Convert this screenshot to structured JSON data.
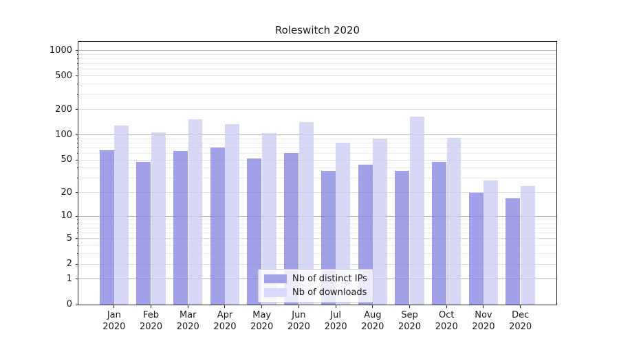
{
  "title": "Roleswitch 2020",
  "chart_data": {
    "type": "bar",
    "title": "Roleswitch 2020",
    "x_categories_line1": [
      "Jan",
      "Feb",
      "Mar",
      "Apr",
      "May",
      "Jun",
      "Jul",
      "Aug",
      "Sep",
      "Oct",
      "Nov",
      "Dec"
    ],
    "x_categories_line2": "2020",
    "series": [
      {
        "name": "Nb of distinct IPs",
        "color": "#a2a2e9",
        "bar_fill": "rgba(134,134,228,0.78)",
        "values": [
          66,
          47,
          64,
          71,
          52,
          61,
          37,
          44,
          37,
          47,
          20,
          17
        ]
      },
      {
        "name": "Nb of downloads",
        "color": "#d8d8f7",
        "bar_fill": "rgba(204,204,244,0.78)",
        "values": [
          130,
          107,
          153,
          134,
          104,
          141,
          80,
          91,
          165,
          92,
          28,
          24
        ]
      }
    ],
    "y_scale": "log1p",
    "y_ticks": [
      0,
      1,
      2,
      5,
      10,
      20,
      50,
      100,
      200,
      500,
      1000
    ],
    "ylim": [
      0,
      1260
    ],
    "grid": {
      "major": [
        1,
        10,
        100,
        1000
      ],
      "medium": [
        2,
        5,
        20,
        50,
        200,
        500
      ],
      "minor": [
        3,
        4,
        6,
        7,
        8,
        9,
        30,
        40,
        60,
        70,
        80,
        90,
        300,
        400,
        600,
        700,
        800,
        900
      ]
    },
    "legend": {
      "position": "lower center"
    }
  },
  "colors": {
    "background": "#ffffff",
    "axis": "#262626",
    "grid_major": "#b3b3b3",
    "grid_medium": "#dcdcdc",
    "grid_minor": "#ececec",
    "text": "#1a1a1a",
    "legend_border": "#cccccc",
    "legend_bg": "rgba(255,255,255,0.8)"
  }
}
